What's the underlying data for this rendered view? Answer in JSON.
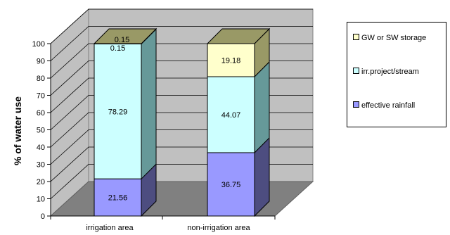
{
  "chart_data": {
    "type": "bar",
    "stacked": true,
    "three_d": true,
    "categories": [
      "irrigation area",
      "non-irrigation area"
    ],
    "series": [
      {
        "name": "effective rainfall",
        "values": [
          21.56,
          36.75
        ],
        "color": "#9999ff"
      },
      {
        "name": "irr.project/stream",
        "values": [
          78.29,
          44.07
        ],
        "color": "#ccffff"
      },
      {
        "name": "GW or SW storage",
        "values": [
          0.15,
          19.18
        ],
        "color": "#ffffcc"
      }
    ],
    "ylabel": "% of water use",
    "ylim": [
      0,
      100
    ],
    "yticks": [
      "0",
      "10",
      "20",
      "30",
      "40",
      "50",
      "60",
      "70",
      "80",
      "90",
      "100"
    ],
    "data_labels": [
      [
        "21.56",
        "78.29",
        "0.15"
      ],
      [
        "36.75",
        "44.07",
        "19.18"
      ]
    ],
    "legend_position": "right",
    "legend_order": [
      2,
      1,
      0
    ],
    "grid": true
  }
}
